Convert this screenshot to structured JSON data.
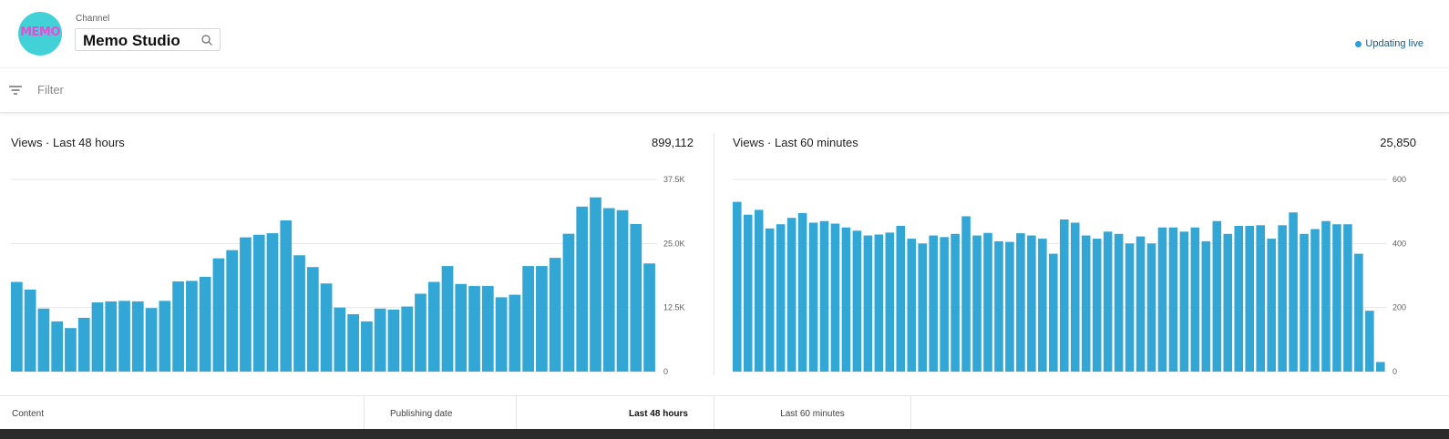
{
  "header": {
    "avatar_text": "MEMO",
    "channel_label": "Channel",
    "channel_name": "Memo Studio",
    "live_status": "Updating live"
  },
  "filter": {
    "placeholder": "Filter"
  },
  "chart_data": [
    {
      "type": "bar",
      "title": "Views · Last 48 hours",
      "total": "899,112",
      "y_ticks": [
        "37.5K",
        "25.0K",
        "12.5K",
        "0"
      ],
      "ylim": [
        0,
        37500
      ],
      "grid": true,
      "bar_color": "#32a6d4",
      "values": [
        17500,
        16000,
        12300,
        9800,
        8500,
        10500,
        13500,
        13700,
        13800,
        13700,
        12400,
        13800,
        17600,
        17700,
        18500,
        22100,
        23700,
        26200,
        26700,
        27000,
        29500,
        22700,
        20400,
        17200,
        12500,
        11200,
        9800,
        12300,
        12100,
        12700,
        15200,
        17500,
        20600,
        17100,
        16700,
        16700,
        14500,
        15000,
        20600,
        20600,
        22200,
        26900,
        32200,
        34000,
        31900,
        31500,
        28800,
        21100
      ]
    },
    {
      "type": "bar",
      "title": "Views · Last 60 minutes",
      "total": "25,850",
      "y_ticks": [
        "600",
        "400",
        "200",
        "0"
      ],
      "ylim": [
        0,
        600
      ],
      "grid": true,
      "bar_color": "#32a6d4",
      "values": [
        530,
        490,
        505,
        447,
        460,
        480,
        495,
        465,
        470,
        462,
        450,
        440,
        425,
        428,
        434,
        455,
        415,
        400,
        425,
        420,
        430,
        485,
        425,
        433,
        407,
        405,
        432,
        425,
        415,
        368,
        475,
        465,
        425,
        415,
        437,
        430,
        400,
        422,
        400,
        450,
        450,
        437,
        450,
        407,
        470,
        430,
        455,
        455,
        457,
        415,
        457,
        497,
        430,
        445,
        470,
        460,
        460,
        368,
        190,
        30
      ]
    }
  ],
  "table": {
    "columns": [
      "Content",
      "Publishing date",
      "Last 48 hours",
      "Last 60 minutes"
    ]
  }
}
